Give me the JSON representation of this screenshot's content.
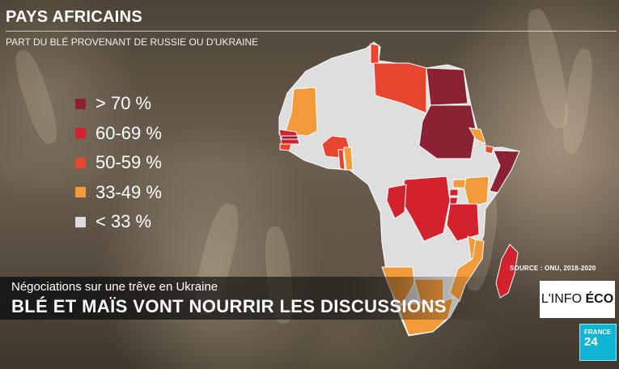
{
  "header": {
    "title": "PAYS AFRICAINS",
    "subtitle": "PART DU BLÉ PROVENANT DE RUSSIE OU D'UKRAINE"
  },
  "legend": [
    {
      "label": "> 70 %",
      "color": "#8b2233"
    },
    {
      "label": "60-69 %",
      "color": "#d2222d"
    },
    {
      "label": "50-59 %",
      "color": "#e8452e"
    },
    {
      "label": "33-49 %",
      "color": "#f39a3a"
    },
    {
      "label": "< 33 %",
      "color": "#dcdcdc"
    }
  ],
  "map": {
    "base_color": "#dedede",
    "border_color": "#ffffff",
    "countries": [
      {
        "name": "mauritania",
        "category": 3
      },
      {
        "name": "senegal",
        "category": 1
      },
      {
        "name": "gambia",
        "category": 0
      },
      {
        "name": "guinea-bissau",
        "category": 2
      },
      {
        "name": "nigeria",
        "category": 2
      },
      {
        "name": "benin",
        "category": 3
      },
      {
        "name": "togo",
        "category": 2
      },
      {
        "name": "tunisia",
        "category": 2
      },
      {
        "name": "libya",
        "category": 2
      },
      {
        "name": "egypt",
        "category": 0
      },
      {
        "name": "sudan",
        "category": 0
      },
      {
        "name": "eritrea",
        "category": 3
      },
      {
        "name": "somalia",
        "category": 0
      },
      {
        "name": "djibouti",
        "category": 2
      },
      {
        "name": "dr-congo",
        "category": 1
      },
      {
        "name": "congo",
        "category": 1
      },
      {
        "name": "rwanda",
        "category": 1
      },
      {
        "name": "burundi",
        "category": 1
      },
      {
        "name": "uganda",
        "category": 3
      },
      {
        "name": "kenya",
        "category": 3
      },
      {
        "name": "tanzania",
        "category": 1
      },
      {
        "name": "malawi",
        "category": 3
      },
      {
        "name": "mozambique",
        "category": 3
      },
      {
        "name": "namibia",
        "category": 3
      },
      {
        "name": "botswana",
        "category": 3
      },
      {
        "name": "south-africa",
        "category": 3
      },
      {
        "name": "madagascar",
        "category": 1
      }
    ]
  },
  "source": "SOURCE : ONU, 2018-2020",
  "lower_third": {
    "kicker": "Négociations sur une trêve en Ukraine",
    "headline": "BLÉ ET MAÏS VONT NOURRIR LES DISCUSSIONS"
  },
  "program_logo": {
    "regular": "L'INFO ",
    "bold": "ÉCO"
  },
  "channel_logo": {
    "line1": "FRANCE",
    "line2": "24"
  }
}
